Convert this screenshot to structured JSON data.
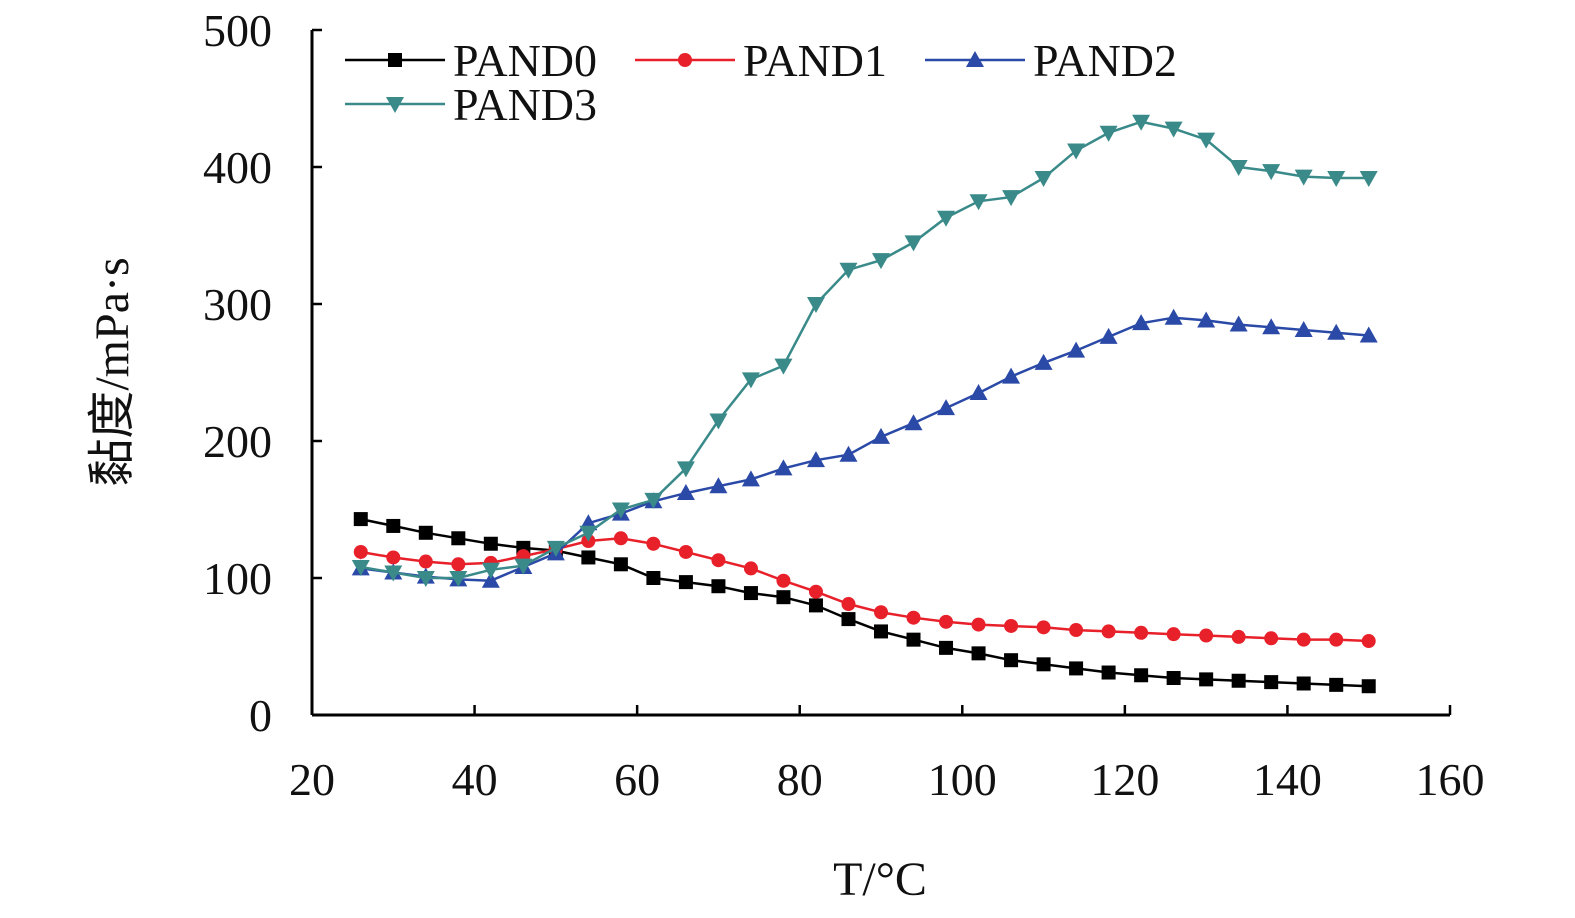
{
  "chart_data": {
    "type": "line",
    "xlabel": "T/°C",
    "ylabel": "黏度/mPa·s",
    "xlim": [
      20,
      160
    ],
    "ylim": [
      0,
      500
    ],
    "xticks": [
      20,
      40,
      60,
      80,
      100,
      120,
      140,
      160
    ],
    "yticks": [
      0,
      100,
      200,
      300,
      400,
      500
    ],
    "grid": false,
    "legend_position": "top-left",
    "series": [
      {
        "name": "PAND0",
        "color": "#000000",
        "marker": "square",
        "x": [
          26,
          30,
          34,
          38,
          42,
          46,
          50,
          54,
          58,
          62,
          66,
          70,
          74,
          78,
          82,
          86,
          90,
          94,
          98,
          102,
          106,
          110,
          114,
          118,
          122,
          126,
          130,
          134,
          138,
          142,
          146,
          150
        ],
        "y": [
          143,
          138,
          133,
          129,
          125,
          122,
          120,
          115,
          110,
          100,
          97,
          94,
          89,
          86,
          80,
          70,
          61,
          55,
          49,
          45,
          40,
          37,
          34,
          31,
          29,
          27,
          26,
          25,
          24,
          23,
          22,
          21
        ]
      },
      {
        "name": "PAND1",
        "color": "#e8202a",
        "marker": "circle",
        "x": [
          26,
          30,
          34,
          38,
          42,
          46,
          50,
          54,
          58,
          62,
          66,
          70,
          74,
          78,
          82,
          86,
          90,
          94,
          98,
          102,
          106,
          110,
          114,
          118,
          122,
          126,
          130,
          134,
          138,
          142,
          146,
          150
        ],
        "y": [
          119,
          115,
          112,
          110,
          111,
          116,
          121,
          127,
          129,
          125,
          119,
          113,
          107,
          98,
          90,
          81,
          75,
          71,
          68,
          66,
          65,
          64,
          62,
          61,
          60,
          59,
          58,
          57,
          56,
          55,
          55,
          54
        ]
      },
      {
        "name": "PAND2",
        "color": "#2b4aa8",
        "marker": "triangle-up",
        "x": [
          26,
          30,
          34,
          38,
          42,
          46,
          50,
          54,
          58,
          62,
          66,
          70,
          74,
          78,
          82,
          86,
          90,
          94,
          98,
          102,
          106,
          110,
          114,
          118,
          122,
          126,
          130,
          134,
          138,
          142,
          146,
          150
        ],
        "y": [
          107,
          104,
          101,
          99,
          98,
          108,
          118,
          140,
          147,
          156,
          162,
          167,
          172,
          180,
          186,
          190,
          203,
          213,
          224,
          235,
          247,
          257,
          266,
          276,
          286,
          290,
          288,
          285,
          283,
          281,
          279,
          277
        ]
      },
      {
        "name": "PAND3",
        "color": "#3a8a8a",
        "marker": "triangle-down",
        "x": [
          26,
          30,
          34,
          38,
          42,
          46,
          50,
          54,
          58,
          62,
          66,
          70,
          74,
          78,
          82,
          86,
          90,
          94,
          98,
          102,
          106,
          110,
          114,
          118,
          122,
          126,
          130,
          134,
          138,
          142,
          146,
          150
        ],
        "y": [
          108,
          104,
          100,
          100,
          106,
          109,
          122,
          133,
          150,
          157,
          180,
          215,
          245,
          255,
          300,
          325,
          332,
          345,
          363,
          375,
          378,
          392,
          412,
          425,
          433,
          428,
          420,
          400,
          397,
          393,
          392,
          392
        ]
      }
    ]
  }
}
